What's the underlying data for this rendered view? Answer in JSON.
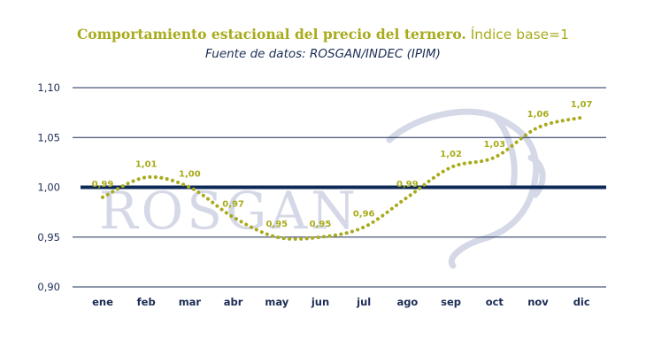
{
  "title": {
    "main": "Comportamiento estacional del precio del ternero.",
    "sub": " Índice base=1"
  },
  "source": "Fuente de datos: ROSGAN/INDEC (IPIM)",
  "watermark": "ROSGAN",
  "colors": {
    "series": "#a8ab1c",
    "baseline": "#0d2a57",
    "grid": "#1b2c55",
    "text": "#1b2c55",
    "watermark": "#d5d8e6"
  },
  "chart_data": {
    "type": "line",
    "line_style": "dotted",
    "categories": [
      "ene",
      "feb",
      "mar",
      "abr",
      "may",
      "jun",
      "jul",
      "ago",
      "sep",
      "oct",
      "nov",
      "dic"
    ],
    "values": [
      0.99,
      1.01,
      1.0,
      0.97,
      0.95,
      0.95,
      0.96,
      0.99,
      1.02,
      1.03,
      1.06,
      1.07
    ],
    "value_labels": [
      "0,99",
      "1,01",
      "1,00",
      "0,97",
      "0,95",
      "0,95",
      "0,96",
      "0,99",
      "1,02",
      "1,03",
      "1,06",
      "1,07"
    ],
    "ylim": [
      0.9,
      1.1
    ],
    "yticks": [
      1.1,
      1.05,
      1.0,
      0.95,
      0.9
    ],
    "ytick_labels": [
      "1,10",
      "1,05",
      "1,00",
      "0,95",
      "0,90"
    ],
    "baseline": 1.0,
    "grid": true,
    "legend": "none"
  }
}
